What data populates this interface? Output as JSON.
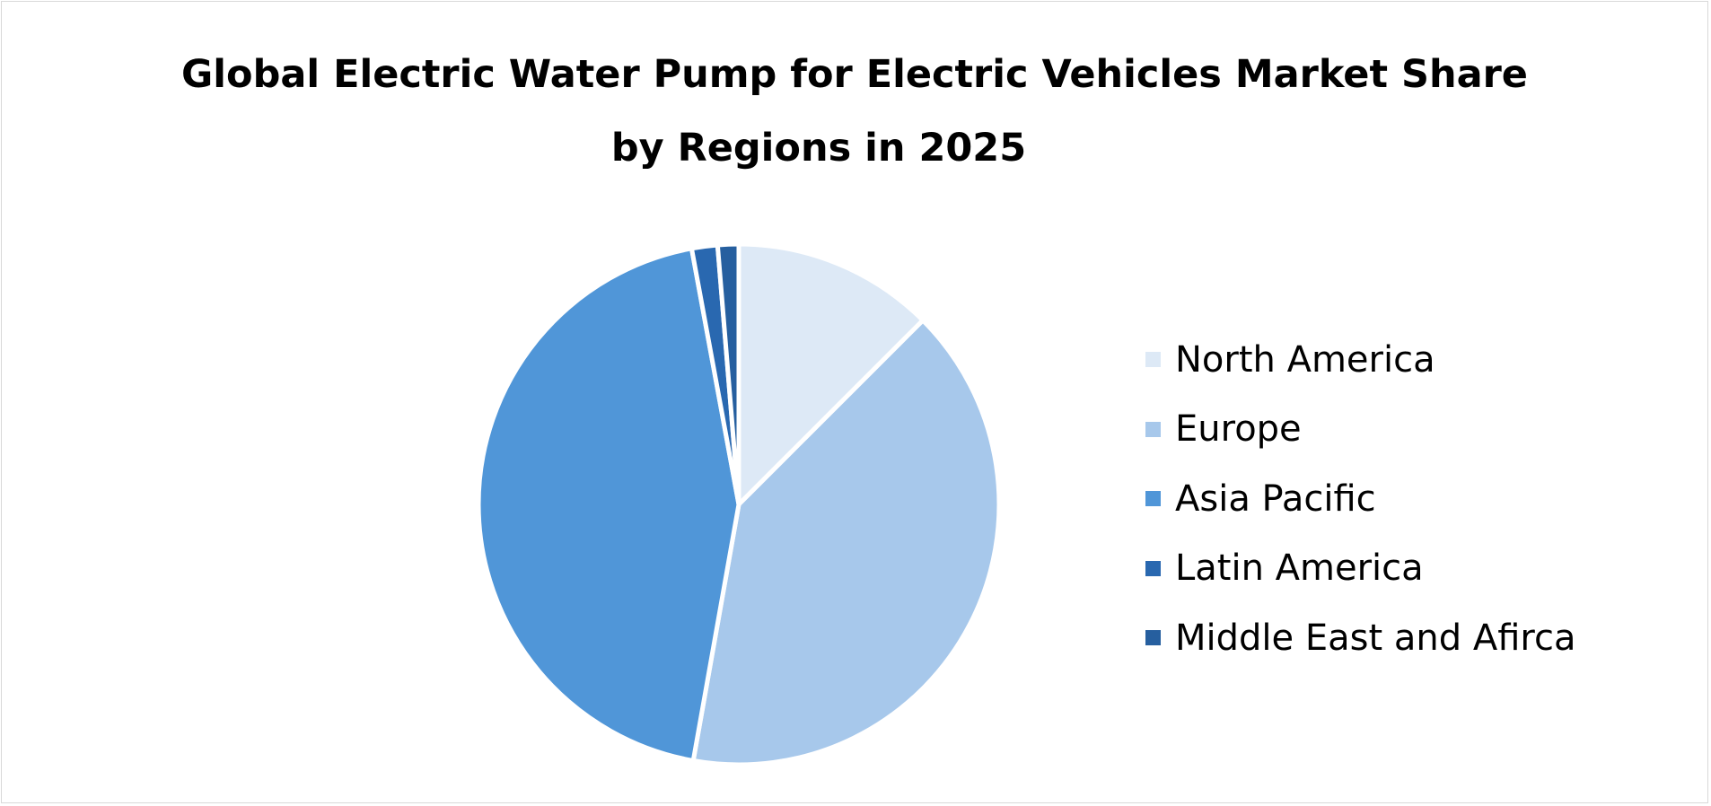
{
  "chart_data": {
    "type": "pie",
    "title_lines": [
      "Global Electric Water Pump for Electric Vehicles Market Share",
      "by Regions in 2025"
    ],
    "labels": [
      "North America",
      "Europe",
      "Asia Pacific",
      "Latin America",
      "Middle East and Afirca"
    ],
    "values": [
      12.5,
      40.3,
      44.3,
      1.6,
      1.3
    ],
    "colors": [
      "#dde9f6",
      "#a7c8eb",
      "#5096d8",
      "#2968b0",
      "#265f9f"
    ],
    "legend_position": "right",
    "start_angle_deg": 0,
    "direction": "clockwise"
  }
}
